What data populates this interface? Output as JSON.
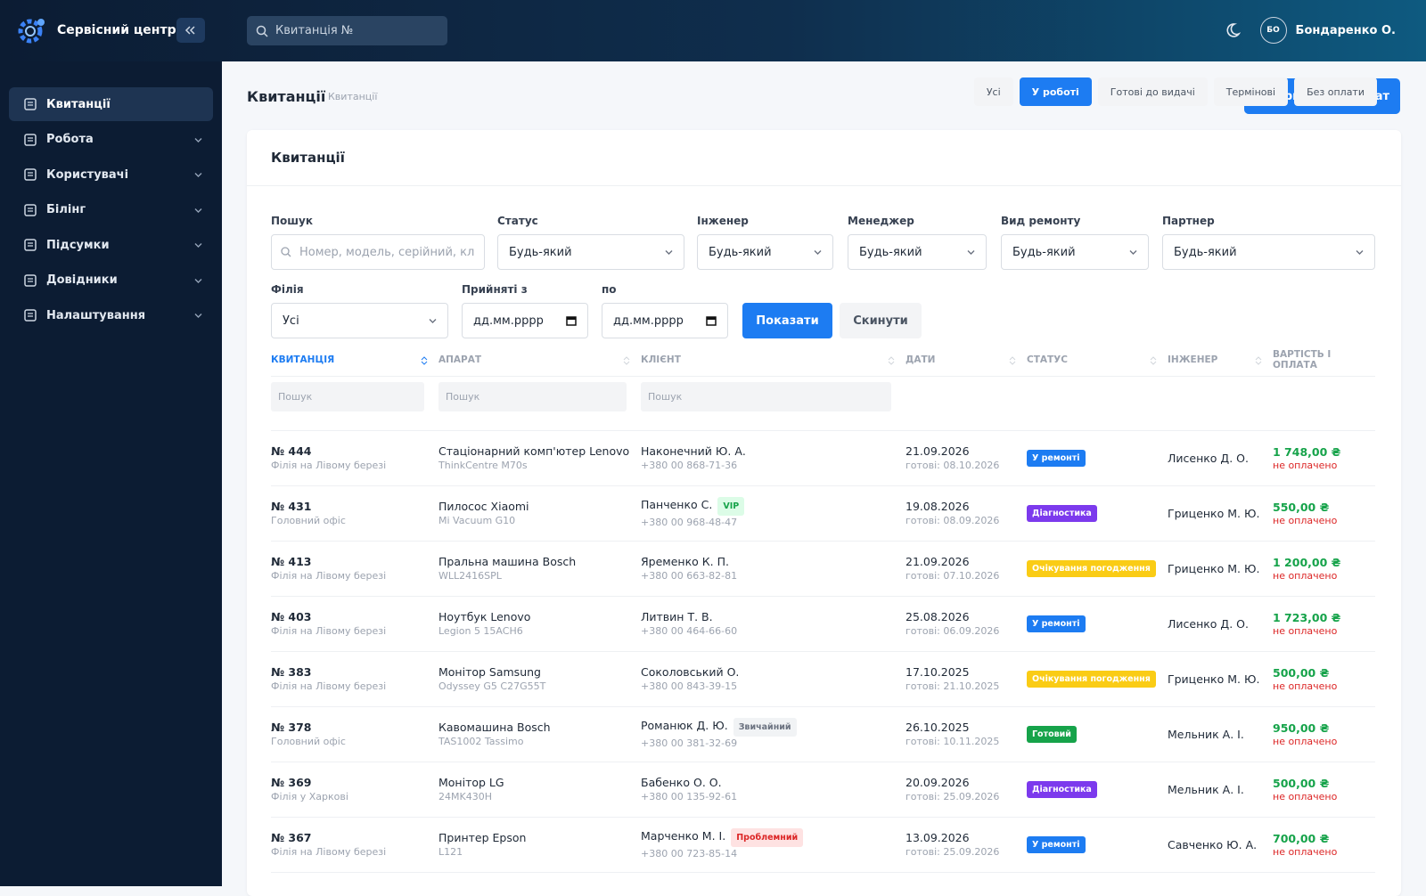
{
  "app": {
    "brand": "Сервісний центр",
    "search_placeholder": "Квитанція №",
    "user_initials": "БО",
    "user_name": "Бондаренко О."
  },
  "sidebar": {
    "active": 0,
    "items": [
      "Квитанції",
      "Робота",
      "Користувачі",
      "Білінг",
      "Підсумки",
      "Довідники",
      "Налаштування"
    ]
  },
  "page": {
    "title": "Квитанції",
    "breadcrumb": "Квитанції",
    "action": "Прийняти апарат"
  },
  "card": {
    "title": "Квитанції",
    "active_tab": 1,
    "tabs": [
      "Усі",
      "У роботі",
      "Готові до видачі",
      "Термінові",
      "Без оплати"
    ]
  },
  "filters": {
    "row1": [
      {
        "label": "Пошук",
        "value": "Номер, модель, серійний, кл",
        "kind": "search"
      },
      {
        "label": "Статус",
        "value": "Будь-який",
        "kind": "select"
      },
      {
        "label": "Інженер",
        "value": "Будь-який",
        "kind": "select"
      },
      {
        "label": "Менеджер",
        "value": "Будь-який",
        "kind": "select"
      },
      {
        "label": "Вид ремонту",
        "value": "Будь-який",
        "kind": "select"
      },
      {
        "label": "Партнер",
        "value": "Будь-який",
        "kind": "select"
      }
    ],
    "row2": [
      {
        "label": "Філія",
        "value": "Усі",
        "kind": "select"
      },
      {
        "label": "Прийняті з",
        "value": "дд.мм.рррр",
        "kind": "date"
      },
      {
        "label": "по",
        "value": "дд.мм.рррр",
        "kind": "date"
      }
    ],
    "show": "Показати",
    "reset": "Скинути"
  },
  "table": {
    "columns": [
      "КВИТАНЦІЯ",
      "АПАРАТ",
      "КЛІЄНТ",
      "ДАТИ",
      "СТАТУС",
      "ІНЖЕНЕР",
      "ВАРТІСТЬ І ОПЛАТА"
    ],
    "column_search": [
      "Пошук",
      "Пошук",
      "Пошук"
    ],
    "rows": [
      {
        "id": "№ 444",
        "branch": "Філія на Лівому березі",
        "device": "Стаціонарний комп'ютер Lenovo",
        "model": "ThinkCentre M70s",
        "client": "Наконечний Ю. А.",
        "phone": "+380 00 868-71-36",
        "date": "21.09.2026",
        "ready": "готові: 08.10.2026",
        "status": "У ремонті",
        "status_color": "#1d7cf2",
        "engineer": "Лисенко Д. О.",
        "price": "1 748,00 ₴",
        "payment": "не оплачено"
      },
      {
        "id": "№ 431",
        "branch": "Головний офіс",
        "device": "Пилосос Xiaomi",
        "model": "Mi Vacuum G10",
        "client": "Панченко С.",
        "badge": "VIP",
        "badge_color": "#16a34a",
        "badge_bg": "#dcfce7",
        "phone": "+380 00 968-48-47",
        "date": "19.08.2026",
        "ready": "готові: 08.09.2026",
        "status": "Діагностика",
        "status_color": "#7c3aed",
        "engineer": "Гриценко М. Ю.",
        "price": "550,00 ₴",
        "payment": "не оплачено"
      },
      {
        "id": "№ 413",
        "branch": "Філія на Лівому березі",
        "device": "Пральна машина Bosch",
        "model": "WLL2416SPL",
        "client": "Яременко К. П.",
        "phone": "+380 00 663-82-81",
        "date": "21.09.2026",
        "ready": "готові: 07.10.2026",
        "status": "Очікування погодження",
        "status_color": "#facc15",
        "engineer": "Гриценко М. Ю.",
        "price": "1 200,00 ₴",
        "payment": "не оплачено"
      },
      {
        "id": "№ 403",
        "branch": "Філія на Лівому березі",
        "device": "Ноутбук Lenovo",
        "model": "Legion 5 15ACH6",
        "client": "Литвин Т. В.",
        "phone": "+380 00 464-66-60",
        "date": "25.08.2026",
        "ready": "готові: 06.09.2026",
        "status": "У ремонті",
        "status_color": "#1d7cf2",
        "engineer": "Лисенко Д. О.",
        "price": "1 723,00 ₴",
        "payment": "не оплачено"
      },
      {
        "id": "№ 383",
        "branch": "Філія на Лівому березі",
        "device": "Монітор Samsung",
        "model": "Odyssey G5 C27G55T",
        "client": "Соколовський О.",
        "phone": "+380 00 843-39-15",
        "date": "17.10.2025",
        "ready": "готові: 21.10.2025",
        "status": "Очікування погодження",
        "status_color": "#facc15",
        "engineer": "Гриценко М. Ю.",
        "price": "500,00 ₴",
        "payment": "не оплачено"
      },
      {
        "id": "№ 378",
        "branch": "Головний офіс",
        "device": "Кавомашина Bosch",
        "model": "TAS1002 Tassimo",
        "client": "Романюк Д. Ю.",
        "badge": "Звичайний",
        "badge_color": "#6b7280",
        "badge_bg": "#f1f3f5",
        "phone": "+380 00 381-32-69",
        "date": "26.10.2025",
        "ready": "готові: 10.11.2025",
        "status": "Готовий",
        "status_color": "#16a34a",
        "engineer": "Мельник А. І.",
        "price": "950,00 ₴",
        "payment": "не оплачено"
      },
      {
        "id": "№ 369",
        "branch": "Філія у Харкові",
        "device": "Монітор LG",
        "model": "24MK430H",
        "client": "Бабенко О. О.",
        "phone": "+380 00 135-92-61",
        "date": "20.09.2026",
        "ready": "готові: 25.09.2026",
        "status": "Діагностика",
        "status_color": "#7c3aed",
        "engineer": "Мельник А. І.",
        "price": "500,00 ₴",
        "payment": "не оплачено"
      },
      {
        "id": "№ 367",
        "branch": "Філія на Лівому березі",
        "device": "Принтер Epson",
        "model": "L121",
        "client": "Марченко М. І.",
        "badge": "Проблемний",
        "badge_color": "#dc2626",
        "badge_bg": "#fee2e2",
        "phone": "+380 00 723-85-14",
        "date": "13.09.2026",
        "ready": "готові: 25.09.2026",
        "status": "У ремонті",
        "status_color": "#1d7cf2",
        "engineer": "Савченко Ю. А.",
        "price": "700,00 ₴",
        "payment": "не оплачено"
      }
    ]
  }
}
